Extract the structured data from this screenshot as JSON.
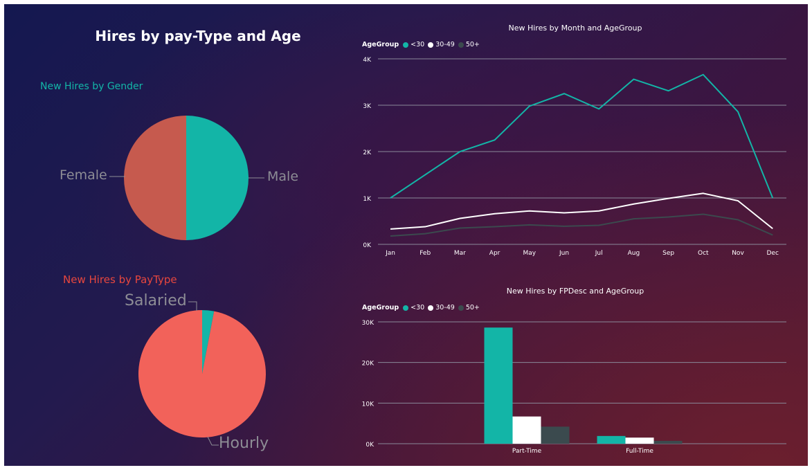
{
  "dashboard": {
    "title": "Hires by pay-Type and Age"
  },
  "colors": {
    "teal": "#13b5a7",
    "white": "#ffffff",
    "dark_gray": "#3b4a4e",
    "female": "#c65a4e",
    "hourly": "#f2625a"
  },
  "chart_data": [
    {
      "type": "pie",
      "title": "New Hires by Gender",
      "slices": [
        {
          "label": "Male",
          "value": 50,
          "color": "#13b5a7"
        },
        {
          "label": "Female",
          "value": 50,
          "color": "#c65a4e"
        }
      ]
    },
    {
      "type": "pie",
      "title": "New Hires by PayType",
      "slices": [
        {
          "label": "Salaried",
          "value": 3,
          "color": "#13b5a7"
        },
        {
          "label": "Hourly",
          "value": 97,
          "color": "#f2625a"
        }
      ]
    },
    {
      "type": "line",
      "title": "New Hires by Month and AgeGroup",
      "legend_title": "AgeGroup",
      "legend_position": "top-left",
      "categories": [
        "Jan",
        "Feb",
        "Mar",
        "Apr",
        "May",
        "Jun",
        "Jul",
        "Aug",
        "Sep",
        "Oct",
        "Nov",
        "Dec"
      ],
      "yticks": [
        "0K",
        "1K",
        "2K",
        "3K",
        "4K"
      ],
      "ylim": [
        0,
        4000
      ],
      "grid": true,
      "series": [
        {
          "name": "<30",
          "color": "#13b5a7",
          "values": [
            1000,
            1500,
            2000,
            2250,
            2980,
            3250,
            2920,
            3560,
            3310,
            3660,
            2860,
            1000
          ]
        },
        {
          "name": "30-49",
          "color": "#ffffff",
          "values": [
            330,
            380,
            560,
            660,
            720,
            680,
            720,
            870,
            990,
            1100,
            940,
            340
          ]
        },
        {
          "name": "50+",
          "color": "#3b4a4e",
          "values": [
            180,
            230,
            350,
            380,
            420,
            390,
            410,
            550,
            590,
            650,
            530,
            200
          ]
        }
      ]
    },
    {
      "type": "bar",
      "title": "New Hires by FPDesc and AgeGroup",
      "legend_title": "AgeGroup",
      "legend_position": "top-left",
      "categories": [
        "Part-Time",
        "Full-Time"
      ],
      "yticks": [
        "0K",
        "10K",
        "20K",
        "30K"
      ],
      "ylim": [
        0,
        30000
      ],
      "grid": true,
      "series": [
        {
          "name": "<30",
          "color": "#13b5a7",
          "values": [
            28600,
            1900
          ]
        },
        {
          "name": "30-49",
          "color": "#ffffff",
          "values": [
            6700,
            1500
          ]
        },
        {
          "name": "50+",
          "color": "#3b4a4e",
          "values": [
            4200,
            700
          ]
        }
      ]
    }
  ]
}
